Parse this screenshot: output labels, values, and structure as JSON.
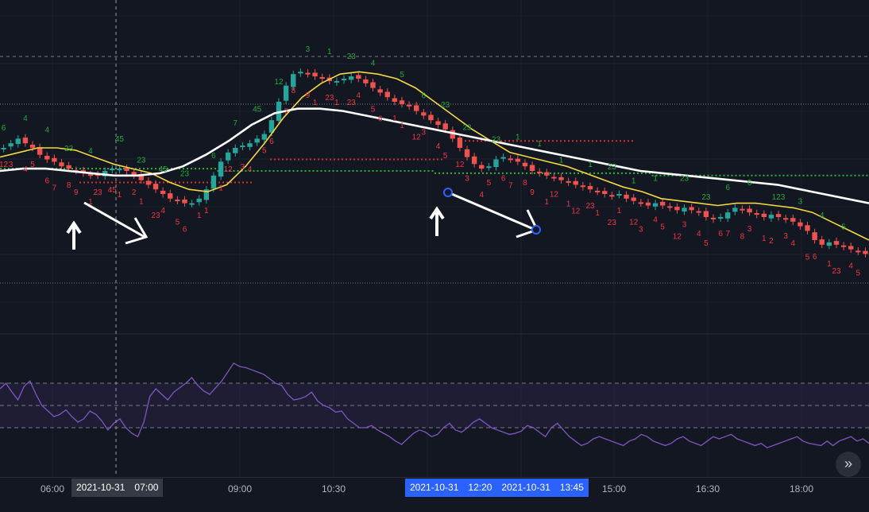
{
  "colors": {
    "background": "#131722",
    "up_candle": "#26a69a",
    "down_candle": "#ef5350",
    "ma_fast": "#f5d742",
    "ma_slow": "#ffffff",
    "oscillator": "#7e57c2",
    "oscillator_band": "#2a2343",
    "td_up_count": "#22ab3a",
    "td_down_count": "#f23645",
    "support_line": "#1fb83a",
    "resistance_line": "#d32f2f",
    "annotation": "#ffffff",
    "anchor_point": "#2962ff"
  },
  "time_axis": {
    "ticks": [
      "06:00",
      "09:00",
      "10:30",
      "15:00",
      "16:30",
      "18:00"
    ],
    "crosshair_badge": {
      "date": "2021-10-31",
      "time": "07:00"
    },
    "range_badge": {
      "start_date": "2021-10-31",
      "start_time": "12:20",
      "end_date": "2021-10-31",
      "end_time": "13:45"
    }
  },
  "scroll_button": {
    "icon": "double-chevron-right-icon",
    "glyph": "»"
  },
  "chart_data": [
    {
      "type": "candlestick",
      "title": "",
      "x_ticks": [
        "06:00",
        "09:00",
        "10:30",
        "15:00",
        "16:30",
        "18:00"
      ],
      "y_range": [
        0,
        100
      ],
      "grid": true,
      "series": [
        {
          "kind": "candles",
          "close": [
            60,
            62,
            64,
            62,
            60,
            57,
            55,
            54,
            52,
            51,
            50,
            49,
            48,
            48,
            50,
            51,
            51,
            50,
            48,
            46,
            44,
            42,
            40,
            38,
            37,
            36,
            36,
            38,
            42,
            48,
            54,
            58,
            60,
            61,
            62,
            64,
            66,
            72,
            80,
            87,
            92,
            93,
            92,
            91,
            90,
            89,
            89,
            90,
            91,
            90,
            88,
            86,
            84,
            82,
            80,
            79,
            78,
            76,
            74,
            72,
            70,
            68,
            64,
            60,
            56,
            53,
            51,
            52,
            55,
            56,
            55,
            54,
            52,
            50,
            49,
            48,
            47,
            46,
            45,
            44,
            43,
            42,
            41,
            40,
            39,
            40,
            38,
            37,
            36,
            35,
            36,
            35,
            34,
            33,
            34,
            33,
            32,
            30,
            29,
            30,
            32,
            34,
            33,
            32,
            31,
            30,
            31,
            30,
            29,
            28,
            26,
            24,
            20,
            18,
            19,
            18,
            17,
            16,
            15,
            14
          ],
          "open_offset_pattern": [
            -1.5,
            2,
            -1,
            1.5,
            -2,
            1
          ]
        },
        {
          "kind": "line",
          "role": "ma_fast",
          "values": [
            56,
            58,
            60,
            60,
            59,
            56,
            53,
            51,
            49,
            45,
            42,
            41,
            44,
            52,
            62,
            73,
            82,
            88,
            92,
            93,
            92,
            90,
            86,
            80,
            74,
            68,
            63,
            58,
            56,
            54,
            52,
            49,
            46,
            43,
            41,
            38,
            37,
            36,
            35,
            36,
            36,
            35,
            34,
            32,
            28,
            24,
            20
          ]
        },
        {
          "kind": "line",
          "role": "ma_slow",
          "values": [
            50,
            51,
            51,
            50,
            49,
            48,
            48,
            49,
            52,
            57,
            63,
            70,
            75,
            77,
            77,
            76,
            74,
            72,
            70,
            68,
            66,
            64,
            62,
            60,
            58,
            56,
            54,
            52,
            50,
            49,
            48,
            47,
            46,
            45,
            44,
            42,
            40,
            38,
            36
          ]
        },
        {
          "kind": "hline",
          "role": "support",
          "values": [
            51,
            50,
            49,
            48
          ]
        },
        {
          "kind": "hline",
          "role": "resistance",
          "values": [
            45,
            55,
            63
          ]
        }
      ],
      "annotations": [
        {
          "type": "arrow-up"
        },
        {
          "type": "arrow-down-right"
        },
        {
          "type": "arrow-up"
        },
        {
          "type": "trend-line-arrow"
        }
      ],
      "td_sequential": {
        "up": [
          "6",
          "4",
          "4",
          "23",
          "4",
          "45",
          "23",
          "45",
          "23",
          "6",
          "7",
          "45",
          "12",
          "3",
          "1",
          "23",
          "4",
          "5",
          "6",
          "23",
          "23",
          "23",
          "1",
          "1",
          "1",
          "1",
          "23",
          "1",
          "1",
          "23",
          "23",
          "6",
          "6",
          "123",
          "3",
          "4",
          "5"
        ],
        "down": [
          "12",
          "3",
          "4",
          "5",
          "6",
          "7",
          "8",
          "9",
          "1",
          "23",
          "45",
          "1",
          "2",
          "1",
          "23",
          "4",
          "5",
          "6",
          "1",
          "1",
          "1",
          "12",
          "3",
          "4",
          "5",
          "6",
          "7",
          "8",
          "9",
          "1",
          "23",
          "1",
          "23",
          "4",
          "5",
          "6",
          "1",
          "1",
          "12",
          "3",
          "4",
          "5",
          "12",
          "3",
          "4",
          "5",
          "6",
          "7",
          "8",
          "9",
          "1",
          "12",
          "1",
          "12",
          "23",
          "1",
          "23",
          "1",
          "12",
          "3",
          "4",
          "5",
          "12",
          "3",
          "4",
          "5",
          "6",
          "7",
          "8",
          "3",
          "1",
          "2",
          "3",
          "4",
          "5",
          "6",
          "1",
          "23",
          "4",
          "5"
        ]
      }
    },
    {
      "type": "line",
      "title": "",
      "y_range": [
        0,
        100
      ],
      "band": [
        30,
        70
      ],
      "midline": 50,
      "series": [
        {
          "values": [
            65,
            70,
            62,
            55,
            67,
            72,
            60,
            50,
            45,
            40,
            42,
            46,
            40,
            35,
            38,
            45,
            42,
            36,
            28,
            34,
            38,
            30,
            25,
            22,
            35,
            58,
            65,
            60,
            55,
            62,
            66,
            70,
            75,
            68,
            63,
            60,
            66,
            72,
            80,
            88,
            85,
            84,
            82,
            80,
            78,
            74,
            70,
            68,
            60,
            55,
            56,
            58,
            62,
            54,
            50,
            48,
            44,
            45,
            38,
            34,
            30,
            30,
            32,
            28,
            25,
            22,
            18,
            15,
            20,
            25,
            28,
            26,
            22,
            24,
            30,
            34,
            28,
            26,
            30,
            35,
            38,
            34,
            30,
            28,
            26,
            24,
            25,
            27,
            32,
            30,
            26,
            22,
            30,
            34,
            28,
            22,
            18,
            14,
            16,
            20,
            22,
            20,
            18,
            16,
            14,
            18,
            20,
            24,
            22,
            18,
            16,
            14,
            16,
            20,
            22,
            18,
            16,
            14,
            18,
            22,
            20,
            22,
            24,
            20,
            18,
            16,
            14,
            16,
            12,
            14,
            16,
            18,
            20,
            22,
            18,
            16,
            15,
            14,
            18,
            14,
            18,
            20,
            22,
            18,
            20,
            16
          ]
        }
      ]
    }
  ]
}
